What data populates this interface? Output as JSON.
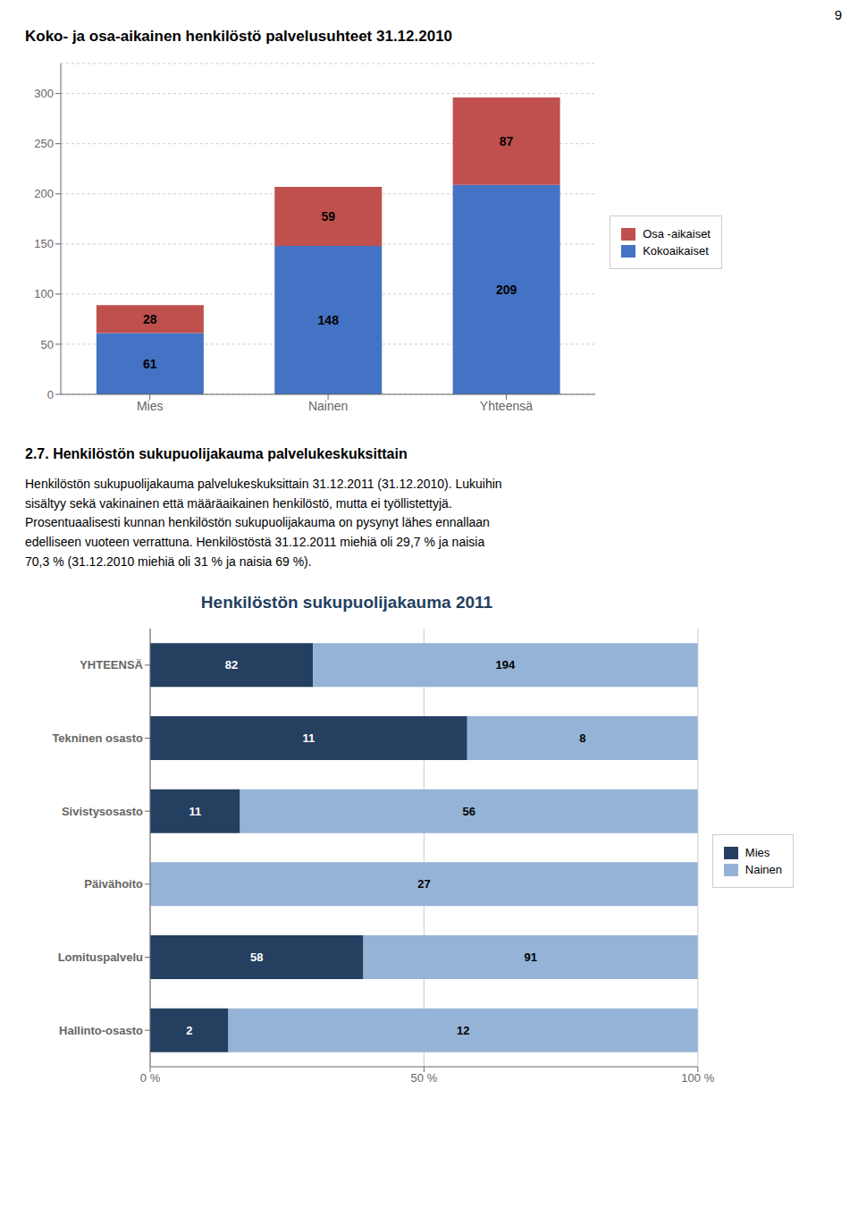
{
  "page_number": "9",
  "text_heading": "2.7. Henkilöstön sukupuolijakauma palvelukeskuksittain",
  "text_lines": [
    "Henkilöstön sukupuolijakauma palvelukeskuksittain 31.12.2011 (31.12.2010). Lukuihin",
    "sisältyy sekä vakinainen että määräaikainen henkilöstö, mutta ei työllistettyjä.",
    "Prosentuaalisesti kunnan henkilöstön sukupuolijakauma on pysynyt lähes ennallaan",
    "edelliseen vuoteen verrattuna. Henkilöstöstä 31.12.2011 miehiä oli 29,7 % ja naisia",
    "70,3 % (31.12.2010 miehiä oli 31 % ja naisia 69 %)."
  ],
  "chart_data": [
    {
      "type": "bar",
      "title": "Koko- ja osa-aikainen henkilöstö palvelusuhteet 31.12.2010",
      "categories": [
        "Mies",
        "Nainen",
        "Yhteensä"
      ],
      "series": [
        {
          "name": "Kokoaikaiset",
          "color": "#4472C4",
          "values": [
            61,
            148,
            209
          ]
        },
        {
          "name": "Osa -aikaiset",
          "color": "#C0504D",
          "values": [
            28,
            59,
            87
          ]
        }
      ],
      "stacked": true,
      "data_labels": true,
      "ylim": [
        0,
        330
      ],
      "yticks": [
        0,
        50,
        100,
        150,
        200,
        250,
        300
      ],
      "grid": true,
      "legend": "right"
    },
    {
      "type": "bar",
      "title": "Henkilöstön sukupuolijakauma 2011",
      "orientation": "horizontal",
      "stacked": true,
      "categories": [
        "YHTEENSÄ",
        "Tekninen osasto",
        "Sivistysosasto",
        "Päivähoito",
        "Lomituspalvelu",
        "Hallinto-osasto"
      ],
      "series": [
        {
          "name": "Mies",
          "color": "#243F60",
          "values": [
            29.7101,
            57.8947,
            16.4179,
            0,
            38.9262,
            14.2857
          ],
          "counts": [
            82,
            11,
            11,
            null,
            58,
            2
          ]
        },
        {
          "name": "Nainen",
          "color": "#95B3D7",
          "values": [
            70.2899,
            42.1053,
            83.5821,
            100,
            61.0738,
            85.7143
          ],
          "counts": [
            194,
            8,
            56,
            27,
            91,
            12
          ]
        }
      ],
      "xlim": [
        0,
        100
      ],
      "xticks": [
        {
          "value": 0,
          "label": "0 %"
        },
        {
          "value": 50,
          "label": "50 %"
        },
        {
          "value": 100,
          "label": "100 %"
        }
      ],
      "grid": true,
      "legend": "right"
    }
  ]
}
